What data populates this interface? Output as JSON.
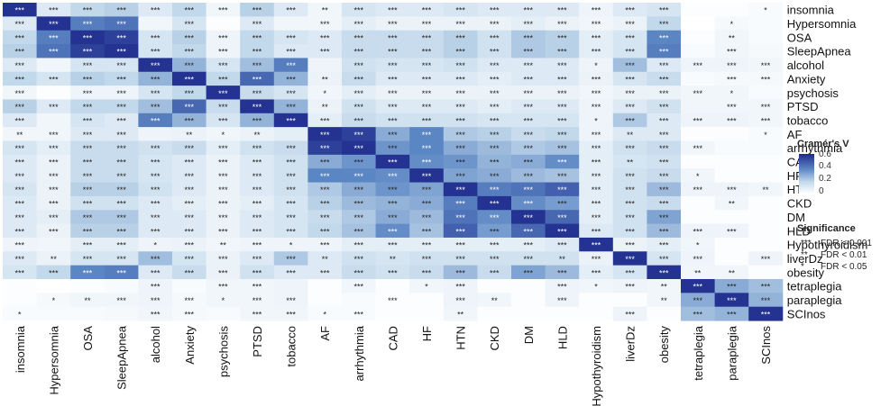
{
  "chart_data": {
    "type": "heatmap",
    "row_labels": [
      "insomnia",
      "Hypersomnia",
      "OSA",
      "SleepApnea",
      "alcohol",
      "Anxiety",
      "psychosis",
      "PTSD",
      "tobacco",
      "AF",
      "arrhythmia",
      "CAD",
      "HF",
      "HTN",
      "CKD",
      "DM",
      "HLD",
      "Hypothyroidism",
      "liverDz",
      "obesity",
      "tetraplegia",
      "paraplegia",
      "SCInos"
    ],
    "col_labels": [
      "insomnia",
      "Hypersomnia",
      "OSA",
      "SleepApnea",
      "alcohol",
      "Anxiety",
      "psychosis",
      "PTSD",
      "tobacco",
      "AF",
      "arrhythmia",
      "CAD",
      "HF",
      "HTN",
      "CKD",
      "DM",
      "HLD",
      "Hypothyroidism",
      "liverDz",
      "obesity",
      "tetraplegia",
      "paraplegia",
      "SCInos"
    ],
    "values": [
      [
        0.62,
        0.1,
        0.18,
        0.2,
        0.1,
        0.18,
        0.04,
        0.2,
        0.1,
        0.04,
        0.12,
        0.1,
        0.1,
        0.12,
        0.1,
        0.1,
        0.1,
        0.05,
        0.1,
        0.12,
        0.01,
        0.01,
        0.02
      ],
      [
        0.1,
        0.62,
        0.42,
        0.45,
        0.04,
        0.12,
        0.01,
        0.1,
        0.04,
        0.04,
        0.08,
        0.06,
        0.06,
        0.06,
        0.06,
        0.08,
        0.06,
        0.04,
        0.06,
        0.18,
        0.0,
        0.03,
        0.02
      ],
      [
        0.18,
        0.42,
        0.62,
        0.58,
        0.12,
        0.2,
        0.05,
        0.18,
        0.12,
        0.1,
        0.16,
        0.16,
        0.16,
        0.2,
        0.14,
        0.22,
        0.2,
        0.08,
        0.12,
        0.4,
        0.01,
        0.04,
        0.02
      ],
      [
        0.2,
        0.45,
        0.58,
        0.62,
        0.12,
        0.18,
        0.05,
        0.18,
        0.1,
        0.1,
        0.16,
        0.16,
        0.16,
        0.2,
        0.14,
        0.22,
        0.2,
        0.08,
        0.12,
        0.42,
        0.02,
        0.04,
        0.03
      ],
      [
        0.1,
        0.04,
        0.12,
        0.12,
        0.62,
        0.28,
        0.12,
        0.25,
        0.42,
        0.05,
        0.14,
        0.12,
        0.12,
        0.14,
        0.1,
        0.1,
        0.1,
        0.05,
        0.25,
        0.1,
        0.05,
        0.05,
        0.04
      ],
      [
        0.18,
        0.12,
        0.2,
        0.18,
        0.28,
        0.62,
        0.18,
        0.48,
        0.28,
        0.06,
        0.16,
        0.1,
        0.1,
        0.1,
        0.08,
        0.1,
        0.1,
        0.06,
        0.12,
        0.16,
        0.02,
        0.03,
        0.03
      ],
      [
        0.04,
        0.01,
        0.05,
        0.05,
        0.12,
        0.18,
        0.62,
        0.16,
        0.12,
        0.04,
        0.08,
        0.06,
        0.06,
        0.06,
        0.06,
        0.06,
        0.06,
        0.04,
        0.06,
        0.06,
        0.04,
        0.04,
        0.02
      ],
      [
        0.2,
        0.1,
        0.18,
        0.18,
        0.25,
        0.48,
        0.16,
        0.62,
        0.28,
        0.06,
        0.14,
        0.1,
        0.1,
        0.1,
        0.08,
        0.1,
        0.1,
        0.05,
        0.1,
        0.14,
        0.04,
        0.04,
        0.04
      ],
      [
        0.1,
        0.04,
        0.12,
        0.1,
        0.42,
        0.28,
        0.12,
        0.28,
        0.62,
        0.08,
        0.16,
        0.14,
        0.14,
        0.14,
        0.12,
        0.12,
        0.12,
        0.05,
        0.22,
        0.1,
        0.05,
        0.05,
        0.04
      ],
      [
        0.04,
        0.04,
        0.1,
        0.1,
        0.05,
        0.06,
        0.04,
        0.06,
        0.08,
        0.62,
        0.58,
        0.3,
        0.4,
        0.22,
        0.2,
        0.16,
        0.18,
        0.05,
        0.1,
        0.1,
        0.01,
        0.01,
        0.02
      ],
      [
        0.12,
        0.08,
        0.16,
        0.16,
        0.14,
        0.16,
        0.08,
        0.14,
        0.16,
        0.58,
        0.62,
        0.36,
        0.4,
        0.3,
        0.26,
        0.22,
        0.24,
        0.08,
        0.14,
        0.16,
        0.04,
        0.02,
        0.02
      ],
      [
        0.1,
        0.06,
        0.16,
        0.16,
        0.12,
        0.1,
        0.06,
        0.1,
        0.14,
        0.3,
        0.36,
        0.62,
        0.38,
        0.36,
        0.28,
        0.3,
        0.38,
        0.08,
        0.12,
        0.14,
        0.01,
        0.01,
        0.01
      ],
      [
        0.1,
        0.06,
        0.16,
        0.16,
        0.12,
        0.1,
        0.06,
        0.1,
        0.14,
        0.4,
        0.4,
        0.38,
        0.62,
        0.32,
        0.3,
        0.26,
        0.24,
        0.08,
        0.14,
        0.16,
        0.04,
        0.01,
        0.01
      ],
      [
        0.12,
        0.06,
        0.2,
        0.2,
        0.14,
        0.1,
        0.06,
        0.1,
        0.14,
        0.22,
        0.3,
        0.36,
        0.32,
        0.62,
        0.42,
        0.45,
        0.5,
        0.08,
        0.14,
        0.26,
        0.05,
        0.05,
        0.04
      ],
      [
        0.1,
        0.06,
        0.14,
        0.14,
        0.1,
        0.08,
        0.06,
        0.08,
        0.12,
        0.2,
        0.26,
        0.28,
        0.3,
        0.42,
        0.62,
        0.38,
        0.34,
        0.08,
        0.14,
        0.16,
        0.01,
        0.04,
        0.01
      ],
      [
        0.1,
        0.08,
        0.22,
        0.22,
        0.1,
        0.1,
        0.06,
        0.1,
        0.12,
        0.16,
        0.22,
        0.3,
        0.26,
        0.45,
        0.38,
        0.62,
        0.48,
        0.08,
        0.14,
        0.32,
        0.01,
        0.01,
        0.01
      ],
      [
        0.1,
        0.06,
        0.2,
        0.2,
        0.1,
        0.1,
        0.06,
        0.1,
        0.12,
        0.18,
        0.24,
        0.38,
        0.24,
        0.5,
        0.34,
        0.48,
        0.62,
        0.1,
        0.14,
        0.26,
        0.05,
        0.05,
        0.01
      ],
      [
        0.05,
        0.04,
        0.08,
        0.08,
        0.05,
        0.06,
        0.04,
        0.05,
        0.05,
        0.05,
        0.08,
        0.08,
        0.08,
        0.08,
        0.08,
        0.08,
        0.1,
        0.62,
        0.06,
        0.08,
        0.04,
        0.01,
        0.01
      ],
      [
        0.1,
        0.06,
        0.12,
        0.12,
        0.25,
        0.12,
        0.06,
        0.1,
        0.22,
        0.1,
        0.14,
        0.12,
        0.14,
        0.14,
        0.14,
        0.14,
        0.14,
        0.06,
        0.62,
        0.12,
        0.05,
        0.01,
        0.05
      ],
      [
        0.12,
        0.18,
        0.4,
        0.42,
        0.1,
        0.16,
        0.06,
        0.14,
        0.1,
        0.1,
        0.16,
        0.14,
        0.16,
        0.26,
        0.16,
        0.32,
        0.26,
        0.08,
        0.12,
        0.62,
        0.04,
        0.04,
        0.01
      ],
      [
        0.01,
        0.0,
        0.01,
        0.02,
        0.05,
        0.02,
        0.04,
        0.04,
        0.05,
        0.01,
        0.04,
        0.01,
        0.04,
        0.05,
        0.01,
        0.01,
        0.05,
        0.04,
        0.05,
        0.04,
        0.62,
        0.3,
        0.25
      ],
      [
        0.01,
        0.03,
        0.04,
        0.04,
        0.05,
        0.03,
        0.04,
        0.04,
        0.05,
        0.01,
        0.02,
        0.01,
        0.01,
        0.05,
        0.04,
        0.01,
        0.05,
        0.01,
        0.01,
        0.04,
        0.3,
        0.62,
        0.28
      ],
      [
        0.02,
        0.02,
        0.02,
        0.03,
        0.04,
        0.03,
        0.02,
        0.04,
        0.04,
        0.02,
        0.02,
        0.01,
        0.01,
        0.04,
        0.01,
        0.01,
        0.01,
        0.01,
        0.05,
        0.01,
        0.25,
        0.28,
        0.62
      ]
    ],
    "significance": [
      [
        "***",
        "***",
        "***",
        "***",
        "***",
        "***",
        "***",
        "***",
        "***",
        "**",
        "***",
        "***",
        "***",
        "***",
        "***",
        "***",
        "***",
        "***",
        "***",
        "***",
        "",
        "",
        "*"
      ],
      [
        "***",
        "***",
        "***",
        "***",
        "",
        "***",
        "",
        "***",
        "",
        "***",
        "***",
        "***",
        "***",
        "***",
        "***",
        "***",
        "***",
        "***",
        "***",
        "***",
        "",
        "*",
        ""
      ],
      [
        "***",
        "***",
        "***",
        "***",
        "***",
        "***",
        "***",
        "***",
        "***",
        "***",
        "***",
        "***",
        "***",
        "***",
        "***",
        "***",
        "***",
        "***",
        "***",
        "***",
        "",
        "**",
        ""
      ],
      [
        "***",
        "***",
        "***",
        "***",
        "***",
        "***",
        "***",
        "***",
        "***",
        "***",
        "***",
        "***",
        "***",
        "***",
        "***",
        "***",
        "***",
        "***",
        "***",
        "***",
        "",
        "***",
        ""
      ],
      [
        "***",
        "",
        "***",
        "***",
        "***",
        "***",
        "***",
        "***",
        "***",
        "",
        "***",
        "***",
        "***",
        "***",
        "***",
        "***",
        "***",
        "*",
        "***",
        "***",
        "***",
        "***",
        "***"
      ],
      [
        "***",
        "***",
        "***",
        "***",
        "***",
        "***",
        "***",
        "***",
        "***",
        "**",
        "***",
        "***",
        "***",
        "***",
        "***",
        "***",
        "***",
        "***",
        "***",
        "***",
        "",
        "***",
        "***"
      ],
      [
        "***",
        "",
        "***",
        "***",
        "***",
        "***",
        "***",
        "***",
        "***",
        "*",
        "***",
        "***",
        "***",
        "***",
        "***",
        "***",
        "***",
        "***",
        "***",
        "***",
        "***",
        "*",
        ""
      ],
      [
        "***",
        "***",
        "***",
        "***",
        "***",
        "***",
        "***",
        "***",
        "***",
        "**",
        "***",
        "***",
        "***",
        "***",
        "***",
        "***",
        "***",
        "***",
        "***",
        "***",
        "",
        "***",
        "***"
      ],
      [
        "***",
        "",
        "***",
        "***",
        "***",
        "***",
        "***",
        "***",
        "***",
        "***",
        "***",
        "***",
        "***",
        "***",
        "***",
        "***",
        "***",
        "*",
        "***",
        "***",
        "***",
        "***",
        "***"
      ],
      [
        "**",
        "***",
        "***",
        "***",
        "",
        "**",
        "*",
        "**",
        "",
        "***",
        "***",
        "***",
        "***",
        "***",
        "***",
        "***",
        "***",
        "***",
        "**",
        "***",
        "",
        "",
        "*"
      ],
      [
        "***",
        "***",
        "***",
        "***",
        "***",
        "***",
        "***",
        "***",
        "***",
        "***",
        "***",
        "***",
        "***",
        "***",
        "***",
        "***",
        "***",
        "***",
        "***",
        "***",
        "***",
        "",
        ""
      ],
      [
        "***",
        "***",
        "***",
        "***",
        "***",
        "***",
        "***",
        "***",
        "***",
        "***",
        "***",
        "***",
        "***",
        "***",
        "***",
        "***",
        "***",
        "***",
        "**",
        "***",
        "",
        "",
        ""
      ],
      [
        "***",
        "***",
        "***",
        "***",
        "***",
        "***",
        "***",
        "***",
        "***",
        "***",
        "***",
        "***",
        "***",
        "***",
        "***",
        "***",
        "***",
        "***",
        "***",
        "***",
        "*",
        "",
        ""
      ],
      [
        "***",
        "***",
        "***",
        "***",
        "***",
        "***",
        "***",
        "***",
        "***",
        "***",
        "***",
        "***",
        "***",
        "***",
        "***",
        "***",
        "***",
        "***",
        "***",
        "***",
        "***",
        "***",
        "**"
      ],
      [
        "***",
        "***",
        "***",
        "***",
        "***",
        "***",
        "***",
        "***",
        "***",
        "***",
        "***",
        "***",
        "***",
        "***",
        "***",
        "***",
        "***",
        "***",
        "***",
        "***",
        "",
        "**",
        ""
      ],
      [
        "***",
        "***",
        "***",
        "***",
        "***",
        "***",
        "***",
        "***",
        "***",
        "***",
        "***",
        "***",
        "***",
        "***",
        "***",
        "***",
        "***",
        "***",
        "***",
        "***",
        "",
        "",
        ""
      ],
      [
        "***",
        "***",
        "***",
        "***",
        "***",
        "***",
        "***",
        "***",
        "***",
        "***",
        "***",
        "***",
        "***",
        "***",
        "***",
        "***",
        "***",
        "***",
        "***",
        "***",
        "***",
        "***",
        ""
      ],
      [
        "***",
        "",
        "***",
        "***",
        "*",
        "***",
        "**",
        "***",
        "*",
        "***",
        "***",
        "***",
        "***",
        "***",
        "***",
        "***",
        "***",
        "***",
        "***",
        "***",
        "*",
        "",
        ""
      ],
      [
        "***",
        "**",
        "***",
        "***",
        "***",
        "***",
        "***",
        "***",
        "***",
        "**",
        "***",
        "**",
        "***",
        "***",
        "***",
        "***",
        "**",
        "***",
        "***",
        "***",
        "***",
        "",
        "***"
      ],
      [
        "***",
        "***",
        "***",
        "***",
        "***",
        "***",
        "***",
        "***",
        "***",
        "***",
        "***",
        "***",
        "***",
        "***",
        "***",
        "***",
        "***",
        "***",
        "***",
        "***",
        "**",
        "**",
        ""
      ],
      [
        "",
        "",
        "",
        "",
        "***",
        "",
        "***",
        "***",
        "",
        "",
        "***",
        "",
        "*",
        "***",
        "",
        "",
        "***",
        "*",
        "***",
        "**",
        "***",
        "***",
        "***"
      ],
      [
        "",
        "*",
        "**",
        "***",
        "***",
        "***",
        "*",
        "***",
        "***",
        "",
        "",
        "***",
        "",
        "***",
        "**",
        "",
        "***",
        "",
        "",
        "**",
        "***",
        "***",
        "***"
      ],
      [
        "*",
        "",
        "",
        "",
        "***",
        "***",
        "",
        "***",
        "***",
        "*",
        "***",
        "",
        "",
        "**",
        "",
        "",
        "",
        "",
        "***",
        "",
        "***",
        "***",
        "***"
      ]
    ],
    "legend": {
      "colorbar_title": "Cramér's V",
      "colorbar_ticks": [
        "0.6",
        "0.4",
        "0.2",
        "0"
      ],
      "colorbar_tick_values": [
        0.6,
        0.4,
        0.2,
        0.0
      ],
      "color_range": [
        0,
        0.64
      ],
      "significance_title": "Significance",
      "significance_items": [
        {
          "stars": "***",
          "label": "FDR < 0.001"
        },
        {
          "stars": "**",
          "label": "FDR < 0.01"
        },
        {
          "stars": "*",
          "label": "FDR < 0.05"
        }
      ]
    },
    "colors": {
      "low": "#ffffff",
      "mid1": "#c2d8eb",
      "mid2": "#5b86c4",
      "high": "#1f2a8c"
    }
  }
}
